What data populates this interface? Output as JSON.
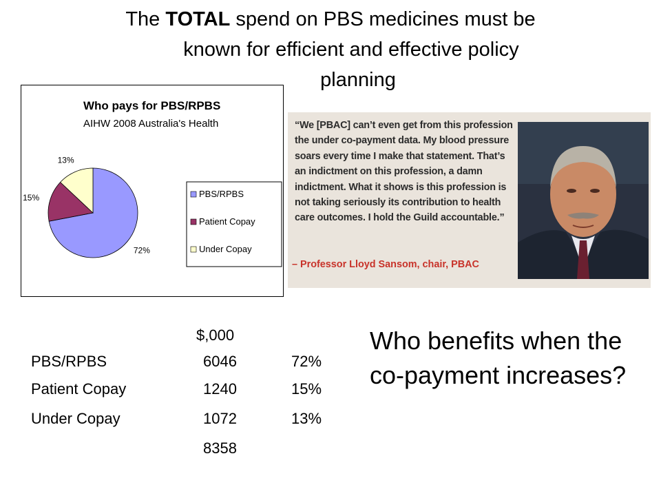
{
  "slide": {
    "title": {
      "pre": "The ",
      "bold": "TOTAL",
      "rest1": " spend on PBS medicines must be",
      "line2": "known for efficient and effective policy",
      "line3": "planning"
    },
    "question": "Who benefits when the co-payment increases?"
  },
  "chart_data": {
    "type": "pie",
    "title": "Who pays for  PBS/RPBS",
    "subtitle": "AIHW 2008 Australia's Health",
    "categories": [
      "PBS/RPBS",
      "Patient Copay",
      "Under Copay"
    ],
    "values": [
      72,
      15,
      13
    ],
    "data_labels": [
      "72%",
      "15%",
      "13%"
    ],
    "colors": [
      "#9999ff",
      "#993366",
      "#ffffcc"
    ],
    "legend_placement": "right"
  },
  "table": {
    "unit_header": "$,000",
    "rows": [
      {
        "label": "PBS/RPBS",
        "amount": "6046",
        "pct": "72%"
      },
      {
        "label": "Patient Copay",
        "amount": "1240",
        "pct": "15%"
      },
      {
        "label": "Under Copay",
        "amount": "1072",
        "pct": "13%"
      }
    ],
    "total": "8358"
  },
  "quote": {
    "text": "“We [PBAC] can’t even get from this profession the under co-payment data. My blood pressure soars every time I make that statement. That’s an indictment on this profession, a damn indictment. What it shows is this profession is not taking seriously its contribution to health care outcomes. I hold the Guild accountable.”",
    "attribution": "– Professor Lloyd Sansom, chair, PBAC"
  }
}
